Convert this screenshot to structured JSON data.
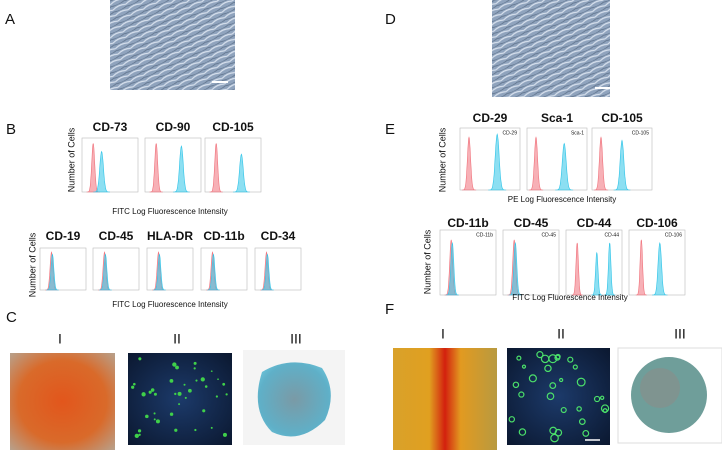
{
  "left": {
    "label_a": "A",
    "label_b": "B",
    "label_c": "C",
    "flow_top": {
      "markers": [
        "CD-73",
        "CD-90",
        "CD-105"
      ],
      "y_label": "Number of Cells",
      "x_label": "FITC Log Fluorescence Intensity"
    },
    "flow_bottom": {
      "markers": [
        "CD-19",
        "CD-45",
        "HLA-DR",
        "CD-11b",
        "CD-34"
      ],
      "y_label": "Number of Cells",
      "x_label": "FITC Log Fluorescence Intensity"
    },
    "stains": [
      "I",
      "II",
      "III"
    ]
  },
  "right": {
    "label_d": "D",
    "label_e": "E",
    "label_f": "F",
    "flow_top": {
      "markers": [
        "CD-29",
        "Sca-1",
        "CD-105"
      ],
      "inset_labels": [
        "CD-29",
        "Sca-1",
        "CD-105"
      ],
      "y_label": "Number of Cells",
      "x_label": "PE Log Fluorescence Intensity"
    },
    "flow_bottom": {
      "markers": [
        "CD-11b",
        "CD-45",
        "CD-44",
        "CD-106"
      ],
      "inset_labels": [
        "CD-11b",
        "CD-45",
        "CD-44",
        "CD-106"
      ],
      "y_label": "Number of Cells",
      "x_label": "FITC Log Fluorescence Intensity"
    },
    "stains": [
      "I",
      "II",
      "III"
    ]
  }
}
